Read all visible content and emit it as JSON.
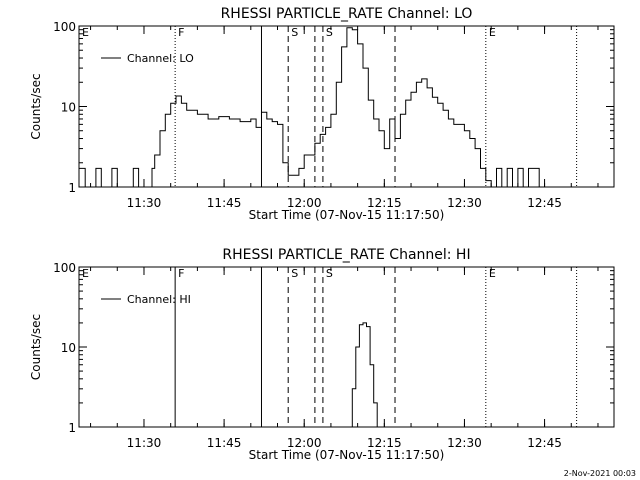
{
  "footer": "2-Nov-2021 00:03",
  "chart_data": [
    {
      "type": "line",
      "title": "RHESSI PARTICLE_RATE Channel: LO",
      "ylabel": "Counts/sec",
      "xlabel": "Start Time (07-Nov-15 11:17:50)",
      "legend": "Channel: LO",
      "legend_position": "top-left",
      "y_scale": "log",
      "ylim": [
        1,
        100
      ],
      "y_ticks": [
        {
          "v": 1,
          "label": "1"
        },
        {
          "v": 10,
          "label": "10"
        },
        {
          "v": 100,
          "label": "100"
        }
      ],
      "xlim": [
        "11:17:50",
        "12:58:00"
      ],
      "x_ticks": [
        "11:30",
        "11:45",
        "12:00",
        "12:15",
        "12:30",
        "12:45"
      ],
      "markers": [
        {
          "time": "11:17:50",
          "label": "E",
          "style": "none"
        },
        {
          "time": "11:35:50",
          "label": "F",
          "style": "dotted"
        },
        {
          "time": "11:52:00",
          "label": "",
          "style": "solid"
        },
        {
          "time": "11:57:00",
          "label": "S",
          "style": "dashed"
        },
        {
          "time": "12:02:00",
          "label": "",
          "style": "dashed"
        },
        {
          "time": "12:03:30",
          "label": "S",
          "style": "dashed"
        },
        {
          "time": "12:17:00",
          "label": "",
          "style": "dashed"
        },
        {
          "time": "12:34:00",
          "label": "E",
          "style": "dotted"
        },
        {
          "time": "12:51:00",
          "label": "",
          "style": "dotted"
        }
      ],
      "series": [
        {
          "name": "Channel: LO",
          "x": [
            "11:17:50",
            "11:19:00",
            "11:21:00",
            "11:22:00",
            "11:24:00",
            "11:25:00",
            "11:28:00",
            "11:29:00",
            "11:31:30",
            "11:32:00",
            "11:33:00",
            "11:34:00",
            "11:35:00",
            "11:36:00",
            "11:37:00",
            "11:38:00",
            "11:40:00",
            "11:42:00",
            "11:44:00",
            "11:46:00",
            "11:48:00",
            "11:50:00",
            "11:51:00",
            "11:52:00",
            "11:53:00",
            "11:54:00",
            "11:55:00",
            "11:56:00",
            "11:57:00",
            "11:59:00",
            "12:00:00",
            "12:02:00",
            "12:03:00",
            "12:04:00",
            "12:05:00",
            "12:06:00",
            "12:07:00",
            "12:08:00",
            "12:09:00",
            "12:10:00",
            "12:11:00",
            "12:12:00",
            "12:13:00",
            "12:14:00",
            "12:15:00",
            "12:16:00",
            "12:17:00",
            "12:18:00",
            "12:19:00",
            "12:20:00",
            "12:21:00",
            "12:22:00",
            "12:23:00",
            "12:24:00",
            "12:25:00",
            "12:26:00",
            "12:27:00",
            "12:28:00",
            "12:29:00",
            "12:30:00",
            "12:31:00",
            "12:32:00",
            "12:33:00",
            "12:34:00",
            "12:35:00",
            "12:36:00",
            "12:37:00",
            "12:38:00",
            "12:39:00",
            "12:40:00",
            "12:41:00",
            "12:42:00",
            "12:44:00"
          ],
          "y": [
            1.7,
            1.0,
            1.7,
            1.0,
            1.7,
            1.0,
            1.7,
            1.0,
            1.7,
            2.5,
            5.0,
            8.0,
            11.0,
            13.5,
            11.0,
            9.0,
            8.0,
            7.0,
            7.5,
            7.0,
            6.5,
            7.0,
            5.5,
            8.5,
            7.0,
            6.5,
            6.0,
            2.0,
            1.4,
            1.7,
            2.5,
            3.5,
            4.5,
            5.5,
            8.0,
            20.0,
            55.0,
            95.0,
            90.0,
            60.0,
            30.0,
            12.0,
            7.0,
            5.0,
            3.0,
            7.0,
            4.0,
            8.0,
            12.0,
            15.0,
            20.0,
            22.0,
            17.0,
            13.0,
            11.0,
            9.0,
            7.0,
            6.0,
            6.0,
            5.0,
            4.0,
            3.0,
            1.7,
            1.2,
            1.0,
            1.7,
            1.0,
            1.7,
            1.0,
            1.7,
            1.0,
            1.7,
            1.0
          ]
        }
      ]
    },
    {
      "type": "line",
      "title": "RHESSI PARTICLE_RATE Channel: HI",
      "ylabel": "Counts/sec",
      "xlabel": "Start Time (07-Nov-15 11:17:50)",
      "legend": "Channel: HI",
      "legend_position": "top-left",
      "y_scale": "log",
      "ylim": [
        1,
        100
      ],
      "y_ticks": [
        {
          "v": 1,
          "label": "1"
        },
        {
          "v": 10,
          "label": "10"
        },
        {
          "v": 100,
          "label": "100"
        }
      ],
      "xlim": [
        "11:17:50",
        "12:58:00"
      ],
      "x_ticks": [
        "11:30",
        "11:45",
        "12:00",
        "12:15",
        "12:30",
        "12:45"
      ],
      "markers": [
        {
          "time": "11:17:50",
          "label": "E",
          "style": "none"
        },
        {
          "time": "11:35:50",
          "label": "F",
          "style": "solid"
        },
        {
          "time": "11:52:00",
          "label": "",
          "style": "solid"
        },
        {
          "time": "11:57:00",
          "label": "S",
          "style": "dashed"
        },
        {
          "time": "12:02:00",
          "label": "",
          "style": "dashed"
        },
        {
          "time": "12:03:30",
          "label": "S",
          "style": "dashed"
        },
        {
          "time": "12:17:00",
          "label": "",
          "style": "dashed"
        },
        {
          "time": "12:34:00",
          "label": "E",
          "style": "dotted"
        },
        {
          "time": "12:51:00",
          "label": "",
          "style": "dotted"
        }
      ],
      "series": [
        {
          "name": "Channel: HI",
          "x": [
            "12:08:20",
            "12:09:00",
            "12:09:40",
            "12:10:20",
            "12:11:00",
            "12:11:40",
            "12:12:20",
            "12:13:00",
            "12:13:40"
          ],
          "y": [
            1.0,
            3.0,
            10.0,
            19.0,
            20.0,
            18.0,
            6.0,
            2.0,
            1.0
          ]
        }
      ]
    }
  ]
}
